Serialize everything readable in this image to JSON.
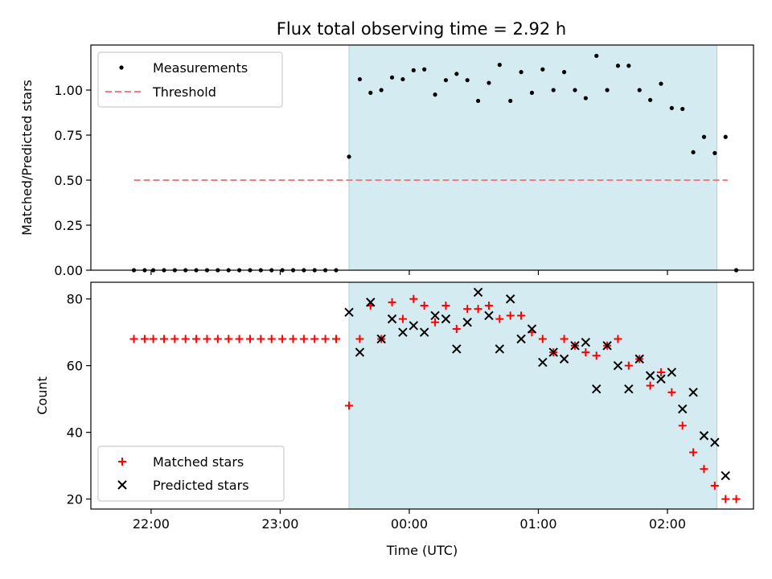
{
  "chart_data": [
    {
      "type": "scatter",
      "title": "Flux total observing time = 2.92 h",
      "xlabel": "",
      "ylabel": "Matched/Predicted stars",
      "xlim": [
        "21:32",
        "02:40"
      ],
      "ylim": [
        0,
        1.25
      ],
      "yticks": [
        "0.00",
        "0.25",
        "0.50",
        "0.75",
        "1.00"
      ],
      "xticks": [
        "22:00",
        "23:00",
        "00:00",
        "01:00",
        "02:00"
      ],
      "show_xtick_labels": false,
      "grid": false,
      "legend_position": "top-left",
      "shaded_region": {
        "start": "23:32",
        "end": "02:23",
        "color": "#d4ebf1"
      },
      "threshold": {
        "name": "Threshold",
        "value": 0.5,
        "start": "21:52",
        "end": "02:28",
        "color": "#f08080"
      },
      "series": [
        {
          "name": "Measurements",
          "color": "#000000",
          "marker": "dot",
          "points": [
            [
              "21:52",
              0.0
            ],
            [
              "21:57",
              0.0
            ],
            [
              "22:01",
              0.0
            ],
            [
              "22:06",
              0.0
            ],
            [
              "22:11",
              0.0
            ],
            [
              "22:16",
              0.0
            ],
            [
              "22:21",
              0.0
            ],
            [
              "22:26",
              0.0
            ],
            [
              "22:31",
              0.0
            ],
            [
              "22:36",
              0.0
            ],
            [
              "22:41",
              0.0
            ],
            [
              "22:46",
              0.0
            ],
            [
              "22:51",
              0.0
            ],
            [
              "22:56",
              0.0
            ],
            [
              "23:01",
              0.0
            ],
            [
              "23:06",
              0.0
            ],
            [
              "23:11",
              0.0
            ],
            [
              "23:16",
              0.0
            ],
            [
              "23:21",
              0.0
            ],
            [
              "23:26",
              0.0
            ],
            [
              "23:32",
              0.63
            ],
            [
              "23:37",
              1.06
            ],
            [
              "23:42",
              0.985
            ],
            [
              "23:47",
              1.0
            ],
            [
              "23:52",
              1.07
            ],
            [
              "23:57",
              1.06
            ],
            [
              "00:02",
              1.11
            ],
            [
              "00:07",
              1.115
            ],
            [
              "00:12",
              0.975
            ],
            [
              "00:17",
              1.055
            ],
            [
              "00:22",
              1.09
            ],
            [
              "00:27",
              1.055
            ],
            [
              "00:32",
              0.94
            ],
            [
              "00:37",
              1.04
            ],
            [
              "00:42",
              1.14
            ],
            [
              "00:47",
              0.94
            ],
            [
              "00:52",
              1.1
            ],
            [
              "00:57",
              0.985
            ],
            [
              "01:02",
              1.115
            ],
            [
              "01:07",
              1.0
            ],
            [
              "01:12",
              1.1
            ],
            [
              "01:17",
              1.0
            ],
            [
              "01:22",
              0.955
            ],
            [
              "01:27",
              1.19
            ],
            [
              "01:32",
              1.0
            ],
            [
              "01:37",
              1.135
            ],
            [
              "01:42",
              1.135
            ],
            [
              "01:47",
              1.0
            ],
            [
              "01:52",
              0.945
            ],
            [
              "01:57",
              1.035
            ],
            [
              "02:02",
              0.9
            ],
            [
              "02:07",
              0.895
            ],
            [
              "02:12",
              0.655
            ],
            [
              "02:17",
              0.74
            ],
            [
              "02:22",
              0.65
            ],
            [
              "02:27",
              0.74
            ],
            [
              "02:32",
              0.0
            ]
          ]
        }
      ]
    },
    {
      "type": "scatter",
      "title": "",
      "xlabel": "Time (UTC)",
      "ylabel": "Count",
      "xlim": [
        "21:32",
        "02:40"
      ],
      "ylim": [
        17,
        85
      ],
      "yticks": [
        "20",
        "40",
        "60",
        "80"
      ],
      "xticks": [
        "22:00",
        "23:00",
        "00:00",
        "01:00",
        "02:00"
      ],
      "grid": false,
      "legend_position": "bottom-left",
      "shaded_region": {
        "start": "23:32",
        "end": "02:23",
        "color": "#d4ebf1"
      },
      "series": [
        {
          "name": "Matched stars",
          "color": "#ff0000",
          "marker": "plus",
          "points": [
            [
              "21:52",
              68
            ],
            [
              "21:57",
              68
            ],
            [
              "22:01",
              68
            ],
            [
              "22:06",
              68
            ],
            [
              "22:11",
              68
            ],
            [
              "22:16",
              68
            ],
            [
              "22:21",
              68
            ],
            [
              "22:26",
              68
            ],
            [
              "22:31",
              68
            ],
            [
              "22:36",
              68
            ],
            [
              "22:41",
              68
            ],
            [
              "22:46",
              68
            ],
            [
              "22:51",
              68
            ],
            [
              "22:56",
              68
            ],
            [
              "23:01",
              68
            ],
            [
              "23:06",
              68
            ],
            [
              "23:11",
              68
            ],
            [
              "23:16",
              68
            ],
            [
              "23:21",
              68
            ],
            [
              "23:26",
              68
            ],
            [
              "23:32",
              48
            ],
            [
              "23:37",
              68
            ],
            [
              "23:42",
              78
            ],
            [
              "23:47",
              68
            ],
            [
              "23:52",
              79
            ],
            [
              "23:57",
              74
            ],
            [
              "00:02",
              80
            ],
            [
              "00:07",
              78
            ],
            [
              "00:12",
              73
            ],
            [
              "00:17",
              78
            ],
            [
              "00:22",
              71
            ],
            [
              "00:27",
              77
            ],
            [
              "00:32",
              77
            ],
            [
              "00:37",
              78
            ],
            [
              "00:42",
              74
            ],
            [
              "00:47",
              75
            ],
            [
              "00:52",
              75
            ],
            [
              "00:57",
              70
            ],
            [
              "01:02",
              68
            ],
            [
              "01:07",
              64
            ],
            [
              "01:12",
              68
            ],
            [
              "01:17",
              66
            ],
            [
              "01:22",
              64
            ],
            [
              "01:27",
              63
            ],
            [
              "01:32",
              66
            ],
            [
              "01:37",
              68
            ],
            [
              "01:42",
              60
            ],
            [
              "01:47",
              62
            ],
            [
              "01:52",
              54
            ],
            [
              "01:57",
              58
            ],
            [
              "02:02",
              52
            ],
            [
              "02:07",
              42
            ],
            [
              "02:12",
              34
            ],
            [
              "02:17",
              29
            ],
            [
              "02:22",
              24
            ],
            [
              "02:27",
              20
            ],
            [
              "02:32",
              20
            ]
          ]
        },
        {
          "name": "Predicted stars",
          "color": "#000000",
          "marker": "x",
          "points": [
            [
              "23:32",
              76
            ],
            [
              "23:37",
              64
            ],
            [
              "23:42",
              79
            ],
            [
              "23:47",
              68
            ],
            [
              "23:52",
              74
            ],
            [
              "23:57",
              70
            ],
            [
              "00:02",
              72
            ],
            [
              "00:07",
              70
            ],
            [
              "00:12",
              75
            ],
            [
              "00:17",
              74
            ],
            [
              "00:22",
              65
            ],
            [
              "00:27",
              73
            ],
            [
              "00:32",
              82
            ],
            [
              "00:37",
              75
            ],
            [
              "00:42",
              65
            ],
            [
              "00:47",
              80
            ],
            [
              "00:52",
              68
            ],
            [
              "00:57",
              71
            ],
            [
              "01:02",
              61
            ],
            [
              "01:07",
              64
            ],
            [
              "01:12",
              62
            ],
            [
              "01:17",
              66
            ],
            [
              "01:22",
              67
            ],
            [
              "01:27",
              53
            ],
            [
              "01:32",
              66
            ],
            [
              "01:37",
              60
            ],
            [
              "01:42",
              53
            ],
            [
              "01:47",
              62
            ],
            [
              "01:52",
              57
            ],
            [
              "01:57",
              56
            ],
            [
              "02:02",
              58
            ],
            [
              "02:07",
              47
            ],
            [
              "02:12",
              52
            ],
            [
              "02:17",
              39
            ],
            [
              "02:22",
              37
            ],
            [
              "02:27",
              27
            ]
          ]
        }
      ]
    }
  ]
}
